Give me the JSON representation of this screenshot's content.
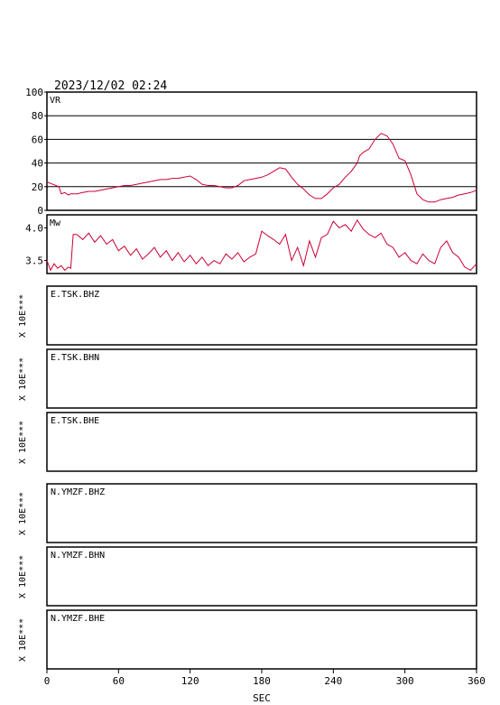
{
  "header": {
    "timestamp": "2023/12/02 02:24"
  },
  "x_axis": {
    "label": "SEC",
    "ticks": [
      "0",
      "60",
      "120",
      "180",
      "240",
      "300",
      "360"
    ],
    "range": [
      0,
      360
    ]
  },
  "colors": {
    "curve": "#cc0033",
    "frame": "#000000"
  },
  "chart_data": [
    {
      "type": "line",
      "panel_label": "VR",
      "xlim": [
        0,
        360
      ],
      "ylim": [
        0,
        100
      ],
      "ytick_labels": [
        "0",
        "20",
        "40",
        "60",
        "80",
        "100"
      ],
      "grid": true,
      "x": [
        0,
        5,
        10,
        12,
        15,
        18,
        20,
        25,
        30,
        35,
        40,
        45,
        50,
        55,
        60,
        65,
        70,
        75,
        80,
        85,
        90,
        95,
        100,
        105,
        110,
        115,
        120,
        125,
        130,
        135,
        140,
        145,
        150,
        155,
        160,
        165,
        170,
        175,
        180,
        185,
        190,
        195,
        200,
        205,
        210,
        215,
        220,
        225,
        230,
        235,
        240,
        245,
        250,
        255,
        260,
        262,
        265,
        270,
        275,
        280,
        285,
        290,
        295,
        300,
        305,
        310,
        315,
        320,
        325,
        330,
        335,
        340,
        345,
        350,
        355,
        360
      ],
      "y": [
        24,
        22,
        20,
        14,
        15,
        13,
        14,
        14,
        15,
        16,
        16,
        17,
        18,
        19,
        20,
        21,
        21,
        22,
        23,
        24,
        25,
        26,
        26,
        27,
        27,
        28,
        29,
        26,
        22,
        21,
        21,
        20,
        19,
        19,
        21,
        25,
        26,
        27,
        28,
        30,
        33,
        36,
        35,
        28,
        22,
        18,
        13,
        10,
        10,
        14,
        19,
        22,
        28,
        33,
        40,
        46,
        49,
        52,
        60,
        65,
        63,
        56,
        44,
        42,
        30,
        14,
        9,
        7,
        7,
        9,
        10,
        11,
        13,
        14,
        15,
        17
      ]
    },
    {
      "type": "line",
      "panel_label": "Mw",
      "xlim": [
        0,
        360
      ],
      "ylim": [
        3.3,
        4.2
      ],
      "ytick_labels": [
        "3.5",
        "4.0"
      ],
      "grid": false,
      "x": [
        0,
        3,
        6,
        9,
        12,
        15,
        18,
        20,
        22,
        25,
        30,
        35,
        40,
        45,
        50,
        55,
        60,
        65,
        70,
        75,
        80,
        85,
        90,
        95,
        100,
        105,
        110,
        115,
        120,
        125,
        130,
        135,
        140,
        145,
        150,
        155,
        160,
        165,
        170,
        175,
        180,
        185,
        190,
        195,
        200,
        205,
        210,
        215,
        220,
        225,
        230,
        235,
        240,
        245,
        250,
        255,
        260,
        265,
        270,
        275,
        280,
        285,
        290,
        295,
        300,
        305,
        310,
        315,
        320,
        325,
        330,
        335,
        340,
        345,
        350,
        355,
        360
      ],
      "y": [
        3.5,
        3.35,
        3.45,
        3.38,
        3.42,
        3.35,
        3.4,
        3.38,
        3.9,
        3.9,
        3.82,
        3.92,
        3.78,
        3.88,
        3.75,
        3.82,
        3.65,
        3.72,
        3.58,
        3.68,
        3.52,
        3.6,
        3.7,
        3.55,
        3.65,
        3.5,
        3.62,
        3.48,
        3.58,
        3.45,
        3.55,
        3.42,
        3.5,
        3.45,
        3.6,
        3.52,
        3.62,
        3.48,
        3.55,
        3.6,
        3.95,
        3.88,
        3.82,
        3.75,
        3.9,
        3.5,
        3.7,
        3.42,
        3.8,
        3.55,
        3.85,
        3.9,
        4.1,
        4.0,
        4.05,
        3.95,
        4.12,
        3.98,
        3.9,
        3.85,
        3.92,
        3.75,
        3.7,
        3.55,
        3.62,
        3.5,
        3.45,
        3.6,
        3.5,
        3.45,
        3.7,
        3.8,
        3.62,
        3.55,
        3.4,
        3.35,
        3.45
      ]
    }
  ],
  "waveform_panels": [
    {
      "station": "E.TSK.BHZ",
      "scale": "X 10E***"
    },
    {
      "station": "E.TSK.BHN",
      "scale": "X 10E***"
    },
    {
      "station": "E.TSK.BHE",
      "scale": "X 10E***"
    },
    {
      "station": "N.YMZF.BHZ",
      "scale": "X 10E***"
    },
    {
      "station": "N.YMZF.BHN",
      "scale": "X 10E***"
    },
    {
      "station": "N.YMZF.BHE",
      "scale": "X 10E***"
    }
  ]
}
